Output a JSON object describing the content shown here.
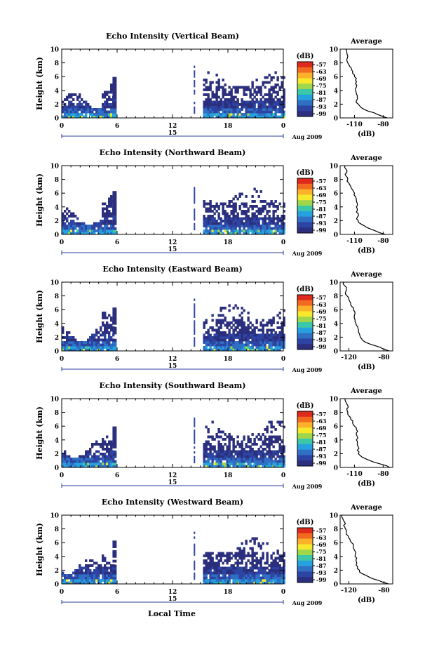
{
  "figure": {
    "xlabel_bottom": "Local Time",
    "date_label": "Aug 2009",
    "colorbar_unit": "(dB)",
    "colorbar_ticks": [
      "-57",
      "-63",
      "-69",
      "-75",
      "-81",
      "-87",
      "-93",
      "-99"
    ],
    "colorbar_colors": [
      "#dd2a1c",
      "#f26a1f",
      "#fbb12a",
      "#f5e82d",
      "#9fd64a",
      "#3cc8a8",
      "#25a2dd",
      "#2f6fc4",
      "#2e44a3",
      "#2b2f7d"
    ],
    "profile_title": "Average",
    "profile_xlabel": "(dB)",
    "ylabel": "Height (km)"
  },
  "chart_data": [
    {
      "type": "heatmap",
      "title": "Echo Intensity (Vertical Beam)",
      "ylabel": "Height (km)",
      "xlim": [
        0,
        24
      ],
      "ylim": [
        0,
        10
      ],
      "xticks": [
        "0",
        "6",
        "12",
        "18",
        "0"
      ],
      "yticks": [
        "0",
        "2",
        "4",
        "6",
        "8",
        "10"
      ],
      "sublabel": "15",
      "gaps": [
        [
          6.0,
          14.3
        ],
        [
          14.5,
          15.7
        ]
      ],
      "profile": {
        "title": "Average",
        "xlabel": "(dB)",
        "xticks": [
          "-110",
          "-80"
        ],
        "yticks": [
          "0",
          "2",
          "4",
          "6",
          "8",
          "10"
        ],
        "xlim": [
          -125,
          -70
        ],
        "ylim": [
          0,
          10
        ],
        "heights": [
          0,
          0.5,
          1,
          1.5,
          2,
          2.5,
          3,
          3.5,
          4,
          4.5,
          5,
          5.5,
          6,
          6.5,
          7,
          7.5,
          8,
          8.5,
          9,
          9.5,
          10
        ],
        "values": [
          -76,
          -86,
          -96,
          -103,
          -106,
          -108,
          -107,
          -108,
          -109,
          -108,
          -109,
          -109,
          -110,
          -112,
          -113,
          -115,
          -117,
          -118,
          -117,
          -118,
          -119
        ]
      }
    },
    {
      "type": "heatmap",
      "title": "Echo Intensity (Northward Beam)",
      "ylabel": "Height (km)",
      "xlim": [
        0,
        24
      ],
      "ylim": [
        0,
        10
      ],
      "xticks": [
        "0",
        "6",
        "12",
        "18",
        "0"
      ],
      "yticks": [
        "0",
        "2",
        "4",
        "6",
        "8",
        "10"
      ],
      "sublabel": "15",
      "gaps": [
        [
          6.0,
          14.3
        ],
        [
          14.5,
          15.7
        ]
      ],
      "profile": {
        "title": "Average",
        "xlabel": "(dB)",
        "xticks": [
          "-110",
          "-80"
        ],
        "yticks": [
          "0",
          "2",
          "4",
          "6",
          "8",
          "10"
        ],
        "xlim": [
          -125,
          -70
        ],
        "ylim": [
          0,
          10
        ],
        "heights": [
          0,
          0.5,
          1,
          1.5,
          2,
          2.5,
          3,
          3.5,
          4,
          4.5,
          5,
          5.5,
          6,
          6.5,
          7,
          7.5,
          8,
          8.5,
          9,
          9.5,
          10
        ],
        "values": [
          -78,
          -88,
          -97,
          -103,
          -106,
          -107,
          -106,
          -107,
          -108,
          -107,
          -108,
          -109,
          -110,
          -112,
          -114,
          -116,
          -117,
          -119,
          -118,
          -119,
          -120
        ]
      }
    },
    {
      "type": "heatmap",
      "title": "Echo Intensity (Eastward Beam)",
      "ylabel": "Height (km)",
      "xlim": [
        0,
        24
      ],
      "ylim": [
        0,
        10
      ],
      "xticks": [
        "0",
        "6",
        "12",
        "18",
        "0"
      ],
      "yticks": [
        "0",
        "2",
        "4",
        "6",
        "8",
        "10"
      ],
      "sublabel": "15",
      "gaps": [
        [
          6.0,
          14.3
        ],
        [
          14.5,
          15.7
        ]
      ],
      "profile": {
        "title": "Average",
        "xlabel": "(dB)",
        "xticks": [
          "-120",
          "-80"
        ],
        "yticks": [
          "0",
          "2",
          "4",
          "6",
          "8",
          "10"
        ],
        "xlim": [
          -130,
          -70
        ],
        "ylim": [
          0,
          10
        ],
        "heights": [
          0,
          0.5,
          1,
          1.5,
          2,
          2.5,
          3,
          3.5,
          4,
          4.5,
          5,
          5.5,
          6,
          6.5,
          7,
          7.5,
          8,
          8.5,
          9,
          9.5,
          10
        ],
        "values": [
          -74,
          -84,
          -96,
          -104,
          -107,
          -108,
          -109,
          -110,
          -112,
          -113,
          -114,
          -113,
          -115,
          -117,
          -118,
          -120,
          -122,
          -124,
          -123,
          -125,
          -126
        ]
      }
    },
    {
      "type": "heatmap",
      "title": "Echo Intensity (Southward Beam)",
      "ylabel": "Height (km)",
      "xlim": [
        0,
        24
      ],
      "ylim": [
        0,
        10
      ],
      "xticks": [
        "0",
        "6",
        "12",
        "18",
        "0"
      ],
      "yticks": [
        "0",
        "2",
        "4",
        "6",
        "8",
        "10"
      ],
      "sublabel": "15",
      "gaps": [
        [
          6.0,
          14.3
        ],
        [
          14.5,
          15.7
        ]
      ],
      "profile": {
        "title": "Average",
        "xlabel": "(dB)",
        "xticks": [
          "-110",
          "-80"
        ],
        "yticks": [
          "0",
          "2",
          "4",
          "6",
          "8",
          "10"
        ],
        "xlim": [
          -125,
          -70
        ],
        "ylim": [
          0,
          10
        ],
        "heights": [
          0,
          0.5,
          1,
          1.5,
          2,
          2.5,
          3,
          3.5,
          4,
          4.5,
          5,
          5.5,
          6,
          6.5,
          7,
          7.5,
          8,
          8.5,
          9,
          9.5,
          10
        ],
        "values": [
          -73,
          -83,
          -94,
          -102,
          -106,
          -107,
          -106,
          -107,
          -108,
          -107,
          -108,
          -108,
          -110,
          -112,
          -114,
          -116,
          -117,
          -118,
          -117,
          -119,
          -120
        ]
      }
    },
    {
      "type": "heatmap",
      "title": "Echo Intensity (Westward Beam)",
      "ylabel": "Height (km)",
      "xlim": [
        0,
        24
      ],
      "ylim": [
        0,
        10
      ],
      "xticks": [
        "0",
        "6",
        "12",
        "18",
        "0"
      ],
      "yticks": [
        "0",
        "2",
        "4",
        "6",
        "8",
        "10"
      ],
      "sublabel": "15",
      "gaps": [
        [
          6.0,
          14.3
        ],
        [
          14.5,
          15.7
        ]
      ],
      "profile": {
        "title": "Average",
        "xlabel": "(dB)",
        "xticks": [
          "-120",
          "-80"
        ],
        "yticks": [
          "0",
          "2",
          "4",
          "6",
          "8",
          "10"
        ],
        "xlim": [
          -130,
          -70
        ],
        "ylim": [
          0,
          10
        ],
        "heights": [
          0,
          0.5,
          1,
          1.5,
          2,
          2.5,
          3,
          3.5,
          4,
          4.5,
          5,
          5.5,
          6,
          6.5,
          7,
          7.5,
          8,
          8.5,
          9,
          9.5,
          10
        ],
        "values": [
          -75,
          -86,
          -97,
          -105,
          -108,
          -110,
          -111,
          -112,
          -113,
          -112,
          -114,
          -115,
          -117,
          -119,
          -121,
          -123,
          -124,
          -126,
          -125,
          -127,
          -128
        ]
      }
    }
  ]
}
